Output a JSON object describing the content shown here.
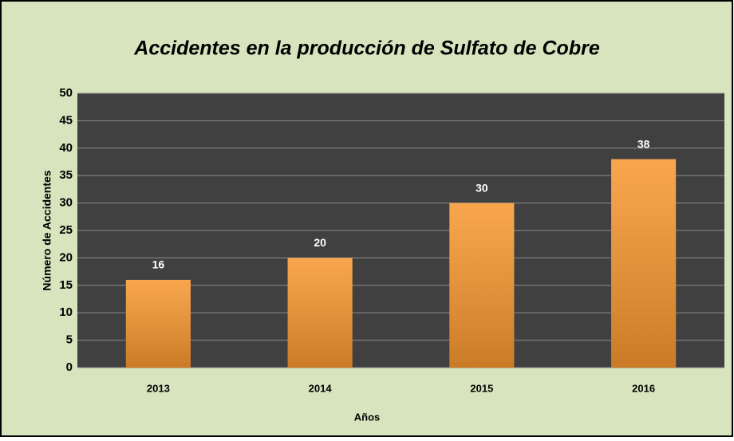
{
  "chart_data": {
    "type": "bar",
    "title": "Accidentes en la producción de Sulfato de Cobre",
    "x_label": "Años",
    "y_label": "Número de Accidentes",
    "categories": [
      "2013",
      "2014",
      "2015",
      "2016"
    ],
    "values": [
      16,
      20,
      30,
      38
    ],
    "color": "#f7962f",
    "ylim": [
      0,
      50
    ],
    "yticks": [
      0,
      5,
      10,
      15,
      20,
      25,
      30,
      35,
      40,
      45,
      50
    ],
    "grid": true
  }
}
